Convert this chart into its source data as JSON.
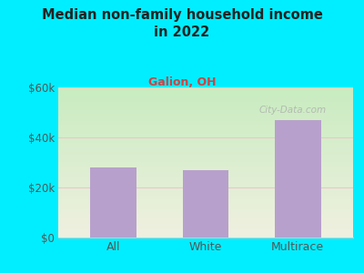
{
  "categories": [
    "All",
    "White",
    "Multirace"
  ],
  "values": [
    28000,
    27000,
    47000
  ],
  "bar_color": "#b8a0cc",
  "title": "Median non-family household income\nin 2022",
  "subtitle": "Galion, OH",
  "subtitle_color": "#cc4444",
  "title_color": "#222222",
  "bg_color": "#00eeff",
  "plot_bg_top_left": "#c8ecc0",
  "plot_bg_bottom_right": "#f0f0e0",
  "ylim": [
    0,
    60000
  ],
  "yticks": [
    0,
    20000,
    40000,
    60000
  ],
  "ytick_labels": [
    "$0",
    "$20k",
    "$40k",
    "$60k"
  ],
  "grid_color": "#e8c8c8",
  "grid_linewidth": 0.8,
  "watermark": "City-Data.com",
  "xlabel_color": "#555555",
  "tick_label_color": "#555555"
}
